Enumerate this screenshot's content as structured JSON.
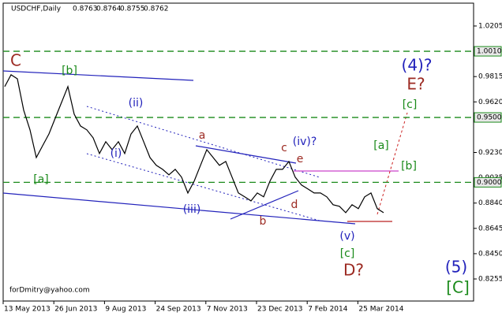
{
  "chart_data": {
    "type": "line",
    "title": "USDCHF,Daily",
    "ohlc": [
      0.8763,
      0.8764,
      0.8755,
      0.8762
    ],
    "values": [
      0.9738,
      0.9829,
      0.9798,
      0.9556,
      0.9404,
      0.9191,
      0.9282,
      0.9373,
      0.9495,
      0.9616,
      0.9738,
      0.9525,
      0.9434,
      0.9404,
      0.9343,
      0.9222,
      0.9313,
      0.9252,
      0.9313,
      0.9222,
      0.9373,
      0.9434,
      0.9313,
      0.9191,
      0.9131,
      0.91,
      0.9058,
      0.91,
      0.904,
      0.8918,
      0.9009,
      0.9131,
      0.9252,
      0.9191,
      0.9131,
      0.9161,
      0.904,
      0.8918,
      0.8888,
      0.8857,
      0.8918,
      0.8888,
      0.9009,
      0.91,
      0.91,
      0.9161,
      0.904,
      0.8979,
      0.8949,
      0.8918,
      0.8918,
      0.8888,
      0.8827,
      0.8815,
      0.8766,
      0.8827,
      0.8797,
      0.8888,
      0.8918,
      0.8797,
      0.8766
    ],
    "color": "#000000",
    "ylim": [
      0.8085,
      1.0381
    ],
    "yticks": [
      1.0205,
      0.9815,
      {
        "value": 0.962,
        "label": "0.9620"
      },
      {
        "value": 0.923,
        "label": "0.9230"
      },
      0.9035,
      {
        "value": 0.884,
        "label": "0.8840"
      },
      0.8645,
      {
        "value": 0.845,
        "label": "0.8450"
      },
      0.8255
    ],
    "levels": [
      {
        "value": 1.001,
        "label": "1.0010",
        "color": "#1a8a1a"
      },
      {
        "value": 0.95,
        "label": "0.9500",
        "color": "#1a8a1a"
      },
      {
        "value": 0.9,
        "label": "0.9000",
        "color": "#1a8a1a"
      }
    ],
    "date_labels": [
      "13 May 2013",
      "26 Jun 2013",
      "9 Aug 2013",
      "24 Sep 2013",
      "7 Nov 2013",
      "23 Dec 2013",
      "7 Feb 2014",
      "25 Mar 2014"
    ],
    "annotations": [
      {
        "text": "C",
        "color": "#9c2a22"
      },
      {
        "text": "[b]",
        "color": "#1a8a1a"
      },
      {
        "text": "(ii)",
        "color": "#2222bb"
      },
      {
        "text": "[a]",
        "color": "#1a8a1a"
      },
      {
        "text": "(i)",
        "color": "#2222bb"
      },
      {
        "text": "(iii)",
        "color": "#2222bb"
      },
      {
        "text": "a",
        "color": "#9c2a22"
      },
      {
        "text": "b",
        "color": "#9c2a22"
      },
      {
        "text": "c",
        "color": "#9c2a22"
      },
      {
        "text": "(iv)?",
        "color": "#2222bb"
      },
      {
        "text": "e",
        "color": "#9c2a22"
      },
      {
        "text": "d",
        "color": "#9c2a22"
      },
      {
        "text": "(v)",
        "color": "#2222bb"
      },
      {
        "text": "[c]",
        "color": "#1a8a1a"
      },
      {
        "text": "D?",
        "color": "#9c2a22"
      },
      {
        "text": "(4)?",
        "color": "#2222bb"
      },
      {
        "text": "E?",
        "color": "#9c2a22"
      },
      {
        "text": "[c]",
        "color": "#1a8a1a"
      },
      {
        "text": "[a]",
        "color": "#1a8a1a"
      },
      {
        "text": "[b]",
        "color": "#1a8a1a"
      },
      {
        "text": "(5)",
        "color": "#2222bb"
      },
      {
        "text": "[C]",
        "color": "#1a8a1a"
      }
    ],
    "credit": "forDmitry@yahoo.com"
  }
}
